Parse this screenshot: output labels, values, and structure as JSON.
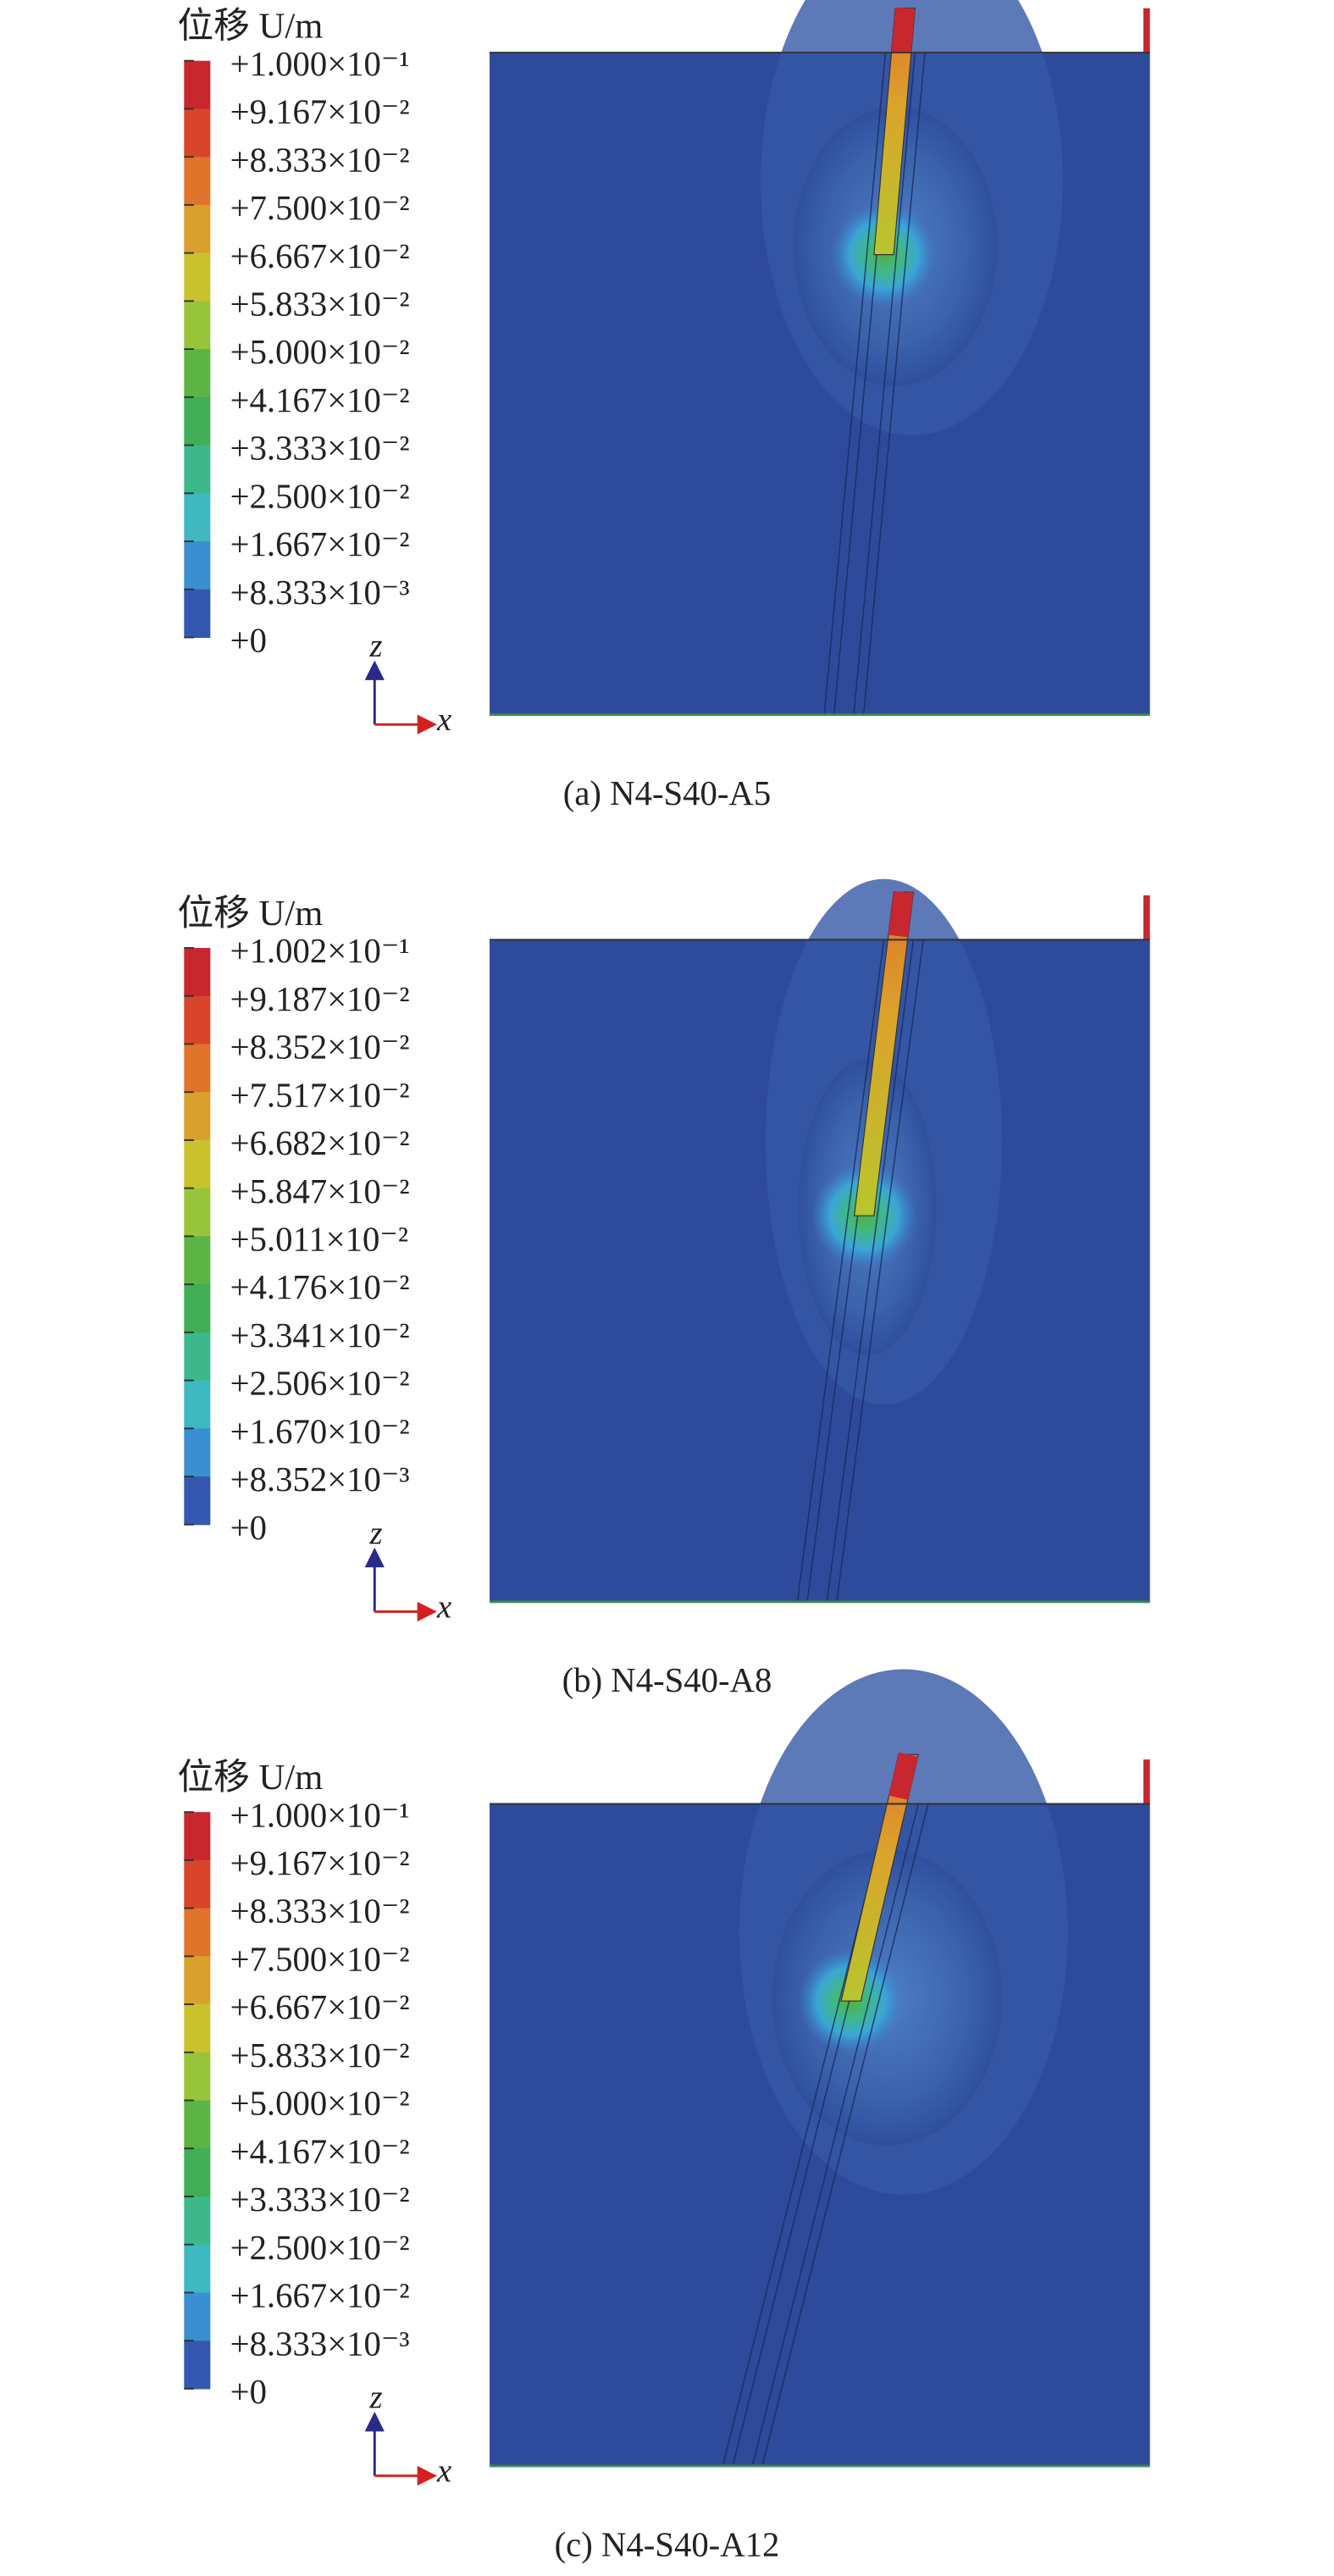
{
  "panels": [
    {
      "legend_title": "位移 U/m",
      "legend_labels": [
        "+1.000×10⁻¹",
        "+9.167×10⁻²",
        "+8.333×10⁻²",
        "+7.500×10⁻²",
        "+6.667×10⁻²",
        "+5.833×10⁻²",
        "+5.000×10⁻²",
        "+4.167×10⁻²",
        "+3.333×10⁻²",
        "+2.500×10⁻²",
        "+1.667×10⁻²",
        "+8.333×10⁻³",
        "+0"
      ],
      "axis_labels": {
        "z": "z",
        "x": "x"
      },
      "caption": "(a) N4-S40-A5"
    },
    {
      "legend_title": "位移 U/m",
      "legend_labels": [
        "+1.002×10⁻¹",
        "+9.187×10⁻²",
        "+8.352×10⁻²",
        "+7.517×10⁻²",
        "+6.682×10⁻²",
        "+5.847×10⁻²",
        "+5.011×10⁻²",
        "+4.176×10⁻²",
        "+3.341×10⁻²",
        "+2.506×10⁻²",
        "+1.670×10⁻²",
        "+8.352×10⁻³",
        "+0"
      ],
      "axis_labels": {
        "z": "z",
        "x": "x"
      },
      "caption": "(b) N4-S40-A8"
    },
    {
      "legend_title": "位移 U/m",
      "legend_labels": [
        "+1.000×10⁻¹",
        "+9.167×10⁻²",
        "+8.333×10⁻²",
        "+7.500×10⁻²",
        "+6.667×10⁻²",
        "+5.833×10⁻²",
        "+5.000×10⁻²",
        "+4.167×10⁻²",
        "+3.333×10⁻²",
        "+2.500×10⁻²",
        "+1.667×10⁻²",
        "+8.333×10⁻³",
        "+0"
      ],
      "axis_labels": {
        "z": "z",
        "x": "x"
      },
      "caption": "(c) N4-S40-A12"
    }
  ]
}
